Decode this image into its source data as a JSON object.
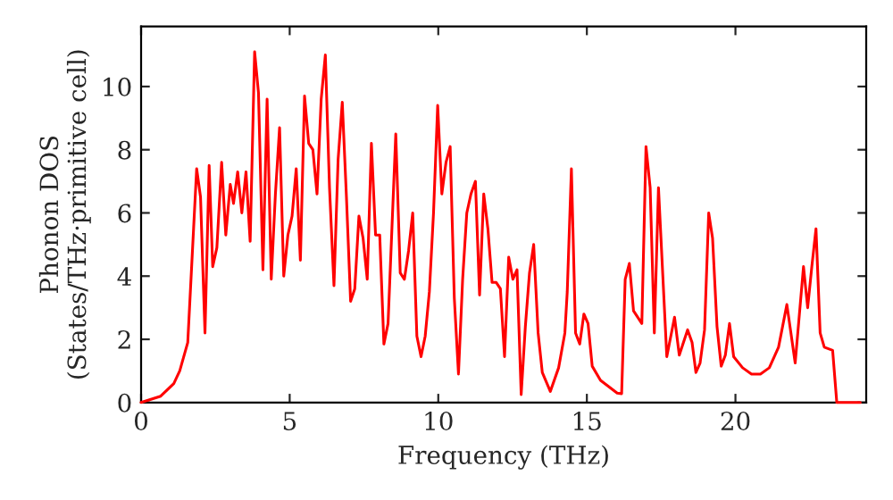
{
  "chart_data": {
    "type": "line",
    "xlabel": "Frequency (THz)",
    "ylabel": "Phonon DOS\n(States/THz·primitive cell)",
    "xlim": [
      0,
      24.4
    ],
    "ylim": [
      0,
      11.9
    ],
    "xticks": [
      0,
      5,
      10,
      15,
      20
    ],
    "yticks": [
      0,
      2,
      4,
      6,
      8,
      10
    ],
    "grid": false,
    "legend": false,
    "marker": "none",
    "line_style": "solid",
    "x": [
      0,
      0.66,
      1.1,
      1.3,
      1.57,
      1.87,
      2.0,
      2.15,
      2.29,
      2.41,
      2.55,
      2.71,
      2.85,
      3.0,
      3.11,
      3.25,
      3.39,
      3.53,
      3.67,
      3.82,
      3.95,
      4.1,
      4.24,
      4.38,
      4.52,
      4.66,
      4.8,
      4.94,
      5.08,
      5.22,
      5.36,
      5.5,
      5.64,
      5.78,
      5.92,
      6.06,
      6.2,
      6.34,
      6.49,
      6.63,
      6.77,
      6.91,
      7.05,
      7.19,
      7.33,
      7.47,
      7.61,
      7.75,
      7.89,
      8.03,
      8.17,
      8.31,
      8.57,
      8.72,
      8.86,
      9.0,
      9.14,
      9.28,
      9.42,
      9.56,
      9.7,
      9.84,
      9.98,
      10.12,
      10.26,
      10.4,
      10.54,
      10.68,
      10.82,
      10.96,
      11.1,
      11.25,
      11.39,
      11.53,
      11.67,
      11.81,
      11.95,
      12.09,
      12.23,
      12.37,
      12.51,
      12.65,
      12.79,
      12.93,
      13.07,
      13.21,
      13.36,
      13.5,
      13.77,
      14.05,
      14.26,
      14.34,
      14.48,
      14.62,
      14.76,
      14.9,
      15.04,
      15.18,
      15.46,
      16.02,
      16.17,
      16.29,
      16.43,
      16.57,
      16.85,
      16.99,
      17.13,
      17.27,
      17.41,
      17.69,
      17.95,
      18.11,
      18.39,
      18.54,
      18.67,
      18.81,
      18.96,
      19.1,
      19.23,
      19.38,
      19.52,
      19.66,
      19.8,
      19.94,
      20.24,
      20.54,
      20.84,
      21.14,
      21.45,
      21.73,
      22.01,
      22.29,
      22.43,
      22.57,
      22.71,
      22.85,
      22.99,
      23.27,
      23.41,
      24.2
    ],
    "series": [
      {
        "color": "#ff0000",
        "values": [
          0,
          0.2,
          0.6,
          1.0,
          1.9,
          7.4,
          6.5,
          2.2,
          7.5,
          4.3,
          4.9,
          7.6,
          5.3,
          6.9,
          6.3,
          7.3,
          6.0,
          7.3,
          5.1,
          11.1,
          9.8,
          4.2,
          9.6,
          3.9,
          6.6,
          8.7,
          4.0,
          5.3,
          5.9,
          7.4,
          4.5,
          9.7,
          8.2,
          8.0,
          6.6,
          9.6,
          11.0,
          6.8,
          3.7,
          7.7,
          9.5,
          6.5,
          3.2,
          3.6,
          5.9,
          5.2,
          3.9,
          8.2,
          5.3,
          5.3,
          1.85,
          2.5,
          8.5,
          4.1,
          3.9,
          4.8,
          6.0,
          2.1,
          1.45,
          2.1,
          3.5,
          6.0,
          9.4,
          6.6,
          7.6,
          8.1,
          3.3,
          0.9,
          3.9,
          6.0,
          6.6,
          7.0,
          3.4,
          6.6,
          5.5,
          3.8,
          3.8,
          3.6,
          1.45,
          4.6,
          3.9,
          4.2,
          0.25,
          2.4,
          4.1,
          5.0,
          2.2,
          0.95,
          0.35,
          1.1,
          2.2,
          3.5,
          7.4,
          2.2,
          1.85,
          2.8,
          2.5,
          1.15,
          0.7,
          0.3,
          0.28,
          3.9,
          4.4,
          2.9,
          2.5,
          8.1,
          6.8,
          2.2,
          6.8,
          1.45,
          2.7,
          1.5,
          2.3,
          1.9,
          0.95,
          1.25,
          2.3,
          6.0,
          5.2,
          2.4,
          1.15,
          1.5,
          2.5,
          1.45,
          1.1,
          0.9,
          0.9,
          1.1,
          1.75,
          3.1,
          1.25,
          4.3,
          3.0,
          4.3,
          5.5,
          2.2,
          1.75,
          1.65,
          0,
          0
        ]
      }
    ]
  }
}
